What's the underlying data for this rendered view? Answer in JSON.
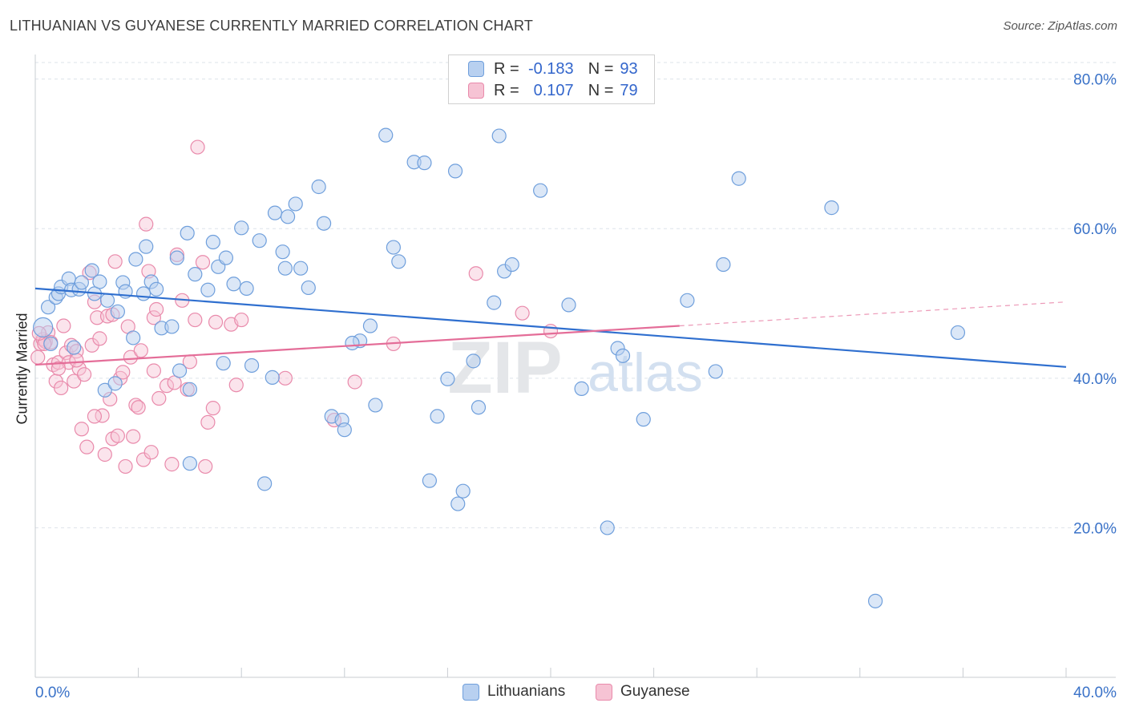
{
  "header": {
    "title": "LITHUANIAN VS GUYANESE CURRENTLY MARRIED CORRELATION CHART",
    "source": "Source: ZipAtlas.com"
  },
  "legend": {
    "rows": [
      {
        "r_label": "R =",
        "r_value": "-0.183",
        "n_label": "N =",
        "n_value": "93"
      },
      {
        "r_label": "R =",
        "r_value": "0.107",
        "n_label": "N =",
        "n_value": "79"
      }
    ]
  },
  "watermark": {
    "zip": "ZIP",
    "atlas": "atlas"
  },
  "colors": {
    "blue_fill": "#b8d0f0",
    "blue_stroke": "#6f9fdc",
    "blue_line": "#2f6fcf",
    "pink_fill": "#f6c3d4",
    "pink_stroke": "#e98aab",
    "pink_line": "#e46d98",
    "tick_label": "#3a72c8",
    "grid": "#dde3ea"
  },
  "chart_data": {
    "type": "scatter",
    "title": "LITHUANIAN VS GUYANESE CURRENTLY MARRIED CORRELATION CHART",
    "xlabel": "",
    "ylabel": "Currently Married",
    "xlim": [
      0,
      40
    ],
    "ylim": [
      0,
      82
    ],
    "x_tick_labels": [
      {
        "value": 0,
        "label": "0.0%"
      },
      {
        "value": 40,
        "label": "40.0%"
      }
    ],
    "y_tick_labels": [
      {
        "value": 20,
        "label": "20.0%"
      },
      {
        "value": 40,
        "label": "40.0%"
      },
      {
        "value": 60,
        "label": "60.0%"
      },
      {
        "value": 80,
        "label": "80.0%"
      }
    ],
    "grid": "horizontal dashed",
    "legend_position": "bottom",
    "series": [
      {
        "name": "Lithuanians",
        "color": "#6f9fdc",
        "r": -0.183,
        "n": 93,
        "trend": {
          "x0": 0,
          "y0": 52.0,
          "x1": 40,
          "y1": 41.5
        },
        "points": [
          [
            0.3,
            46.8
          ],
          [
            0.5,
            49.5
          ],
          [
            0.8,
            50.8
          ],
          [
            0.9,
            51.3
          ],
          [
            1.0,
            52.2
          ],
          [
            1.3,
            53.3
          ],
          [
            1.4,
            51.8
          ],
          [
            1.7,
            51.9
          ],
          [
            1.8,
            52.8
          ],
          [
            2.2,
            54.4
          ],
          [
            2.3,
            51.3
          ],
          [
            2.5,
            52.9
          ],
          [
            2.8,
            50.4
          ],
          [
            3.2,
            48.9
          ],
          [
            3.4,
            52.8
          ],
          [
            3.5,
            51.6
          ],
          [
            3.8,
            45.4
          ],
          [
            3.9,
            55.9
          ],
          [
            4.2,
            51.3
          ],
          [
            4.3,
            57.6
          ],
          [
            4.5,
            52.9
          ],
          [
            4.7,
            51.9
          ],
          [
            4.9,
            46.7
          ],
          [
            5.3,
            46.9
          ],
          [
            5.5,
            56.1
          ],
          [
            5.9,
            59.4
          ],
          [
            6.2,
            53.9
          ],
          [
            6.0,
            38.5
          ],
          [
            6.0,
            28.6
          ],
          [
            6.7,
            51.8
          ],
          [
            6.9,
            58.2
          ],
          [
            7.1,
            54.9
          ],
          [
            7.4,
            56.1
          ],
          [
            7.7,
            52.6
          ],
          [
            8.0,
            60.1
          ],
          [
            8.2,
            52.0
          ],
          [
            8.4,
            41.7
          ],
          [
            8.7,
            58.4
          ],
          [
            8.9,
            25.9
          ],
          [
            9.2,
            40.1
          ],
          [
            9.3,
            62.1
          ],
          [
            9.6,
            56.9
          ],
          [
            9.7,
            54.7
          ],
          [
            9.8,
            61.6
          ],
          [
            10.1,
            63.3
          ],
          [
            10.3,
            54.7
          ],
          [
            10.6,
            52.1
          ],
          [
            11.0,
            65.6
          ],
          [
            11.2,
            60.7
          ],
          [
            11.5,
            34.9
          ],
          [
            11.9,
            34.4
          ],
          [
            12.0,
            33.1
          ],
          [
            12.6,
            45.0
          ],
          [
            13.0,
            47.0
          ],
          [
            13.2,
            36.4
          ],
          [
            13.6,
            72.5
          ],
          [
            13.9,
            57.5
          ],
          [
            14.1,
            55.6
          ],
          [
            14.7,
            68.9
          ],
          [
            15.1,
            68.8
          ],
          [
            15.3,
            26.3
          ],
          [
            15.6,
            34.9
          ],
          [
            16.0,
            39.9
          ],
          [
            16.3,
            67.7
          ],
          [
            16.4,
            23.2
          ],
          [
            16.6,
            24.9
          ],
          [
            17.2,
            36.1
          ],
          [
            17.8,
            50.1
          ],
          [
            18.0,
            72.4
          ],
          [
            18.2,
            54.3
          ],
          [
            18.5,
            55.2
          ],
          [
            19.6,
            65.1
          ],
          [
            20.7,
            49.8
          ],
          [
            21.2,
            38.6
          ],
          [
            22.2,
            20.0
          ],
          [
            22.6,
            44.0
          ],
          [
            22.8,
            43.0
          ],
          [
            23.6,
            34.5
          ],
          [
            25.3,
            50.4
          ],
          [
            26.4,
            40.9
          ],
          [
            26.7,
            55.2
          ],
          [
            27.3,
            66.7
          ],
          [
            30.9,
            62.8
          ],
          [
            32.6,
            10.2
          ],
          [
            35.8,
            46.1
          ],
          [
            2.7,
            38.4
          ],
          [
            1.5,
            44.1
          ],
          [
            0.6,
            44.6
          ],
          [
            3.1,
            39.3
          ],
          [
            12.3,
            44.7
          ],
          [
            7.3,
            42.0
          ],
          [
            5.6,
            41.0
          ],
          [
            17.0,
            42.3
          ]
        ]
      },
      {
        "name": "Guyanese",
        "color": "#e98aab",
        "r": 0.107,
        "n": 79,
        "trend": {
          "x0": 0,
          "y0": 41.8,
          "x1": 25.0,
          "y1": 47.0,
          "dash_x1": 40,
          "dash_y1": 50.2
        },
        "points": [
          [
            0.1,
            42.8
          ],
          [
            0.2,
            44.6
          ],
          [
            0.3,
            45.2
          ],
          [
            0.4,
            44.9
          ],
          [
            0.5,
            46.1
          ],
          [
            0.6,
            44.8
          ],
          [
            0.7,
            41.8
          ],
          [
            0.8,
            39.6
          ],
          [
            0.9,
            42.1
          ],
          [
            1.0,
            38.7
          ],
          [
            1.1,
            47.0
          ],
          [
            1.2,
            43.4
          ],
          [
            1.3,
            42.1
          ],
          [
            1.4,
            44.4
          ],
          [
            1.5,
            39.6
          ],
          [
            1.6,
            43.6
          ],
          [
            1.7,
            41.3
          ],
          [
            1.8,
            33.2
          ],
          [
            1.9,
            40.5
          ],
          [
            2.0,
            30.8
          ],
          [
            2.1,
            54.1
          ],
          [
            2.2,
            44.4
          ],
          [
            2.3,
            50.2
          ],
          [
            2.4,
            48.1
          ],
          [
            2.5,
            45.3
          ],
          [
            2.6,
            35.0
          ],
          [
            2.7,
            29.8
          ],
          [
            2.8,
            48.3
          ],
          [
            2.9,
            37.2
          ],
          [
            3.0,
            31.9
          ],
          [
            3.1,
            55.6
          ],
          [
            3.2,
            32.3
          ],
          [
            3.3,
            40.0
          ],
          [
            3.4,
            40.8
          ],
          [
            3.5,
            28.2
          ],
          [
            3.6,
            46.9
          ],
          [
            3.7,
            42.8
          ],
          [
            3.8,
            32.2
          ],
          [
            3.9,
            36.4
          ],
          [
            4.0,
            36.1
          ],
          [
            4.1,
            43.7
          ],
          [
            4.2,
            29.1
          ],
          [
            4.3,
            60.6
          ],
          [
            4.4,
            54.3
          ],
          [
            4.5,
            30.1
          ],
          [
            4.6,
            48.1
          ],
          [
            4.7,
            49.2
          ],
          [
            4.8,
            37.3
          ],
          [
            5.1,
            39.0
          ],
          [
            5.3,
            28.5
          ],
          [
            5.4,
            39.4
          ],
          [
            5.5,
            56.5
          ],
          [
            5.7,
            50.4
          ],
          [
            5.9,
            38.5
          ],
          [
            6.0,
            42.2
          ],
          [
            6.2,
            47.8
          ],
          [
            6.3,
            70.9
          ],
          [
            6.5,
            55.5
          ],
          [
            6.6,
            28.2
          ],
          [
            6.7,
            34.1
          ],
          [
            6.9,
            36.0
          ],
          [
            7.0,
            47.5
          ],
          [
            7.6,
            47.2
          ],
          [
            7.8,
            39.1
          ],
          [
            8.0,
            47.8
          ],
          [
            9.7,
            40.0
          ],
          [
            11.6,
            34.4
          ],
          [
            12.4,
            39.5
          ],
          [
            13.9,
            44.6
          ],
          [
            17.1,
            54.0
          ],
          [
            18.9,
            48.7
          ],
          [
            20.0,
            46.3
          ],
          [
            0.35,
            44.6
          ],
          [
            0.9,
            41.3
          ],
          [
            2.3,
            34.9
          ],
          [
            1.6,
            42.4
          ],
          [
            4.6,
            41.0
          ],
          [
            0.15,
            46.0
          ],
          [
            3.0,
            48.5
          ]
        ]
      }
    ]
  },
  "bottom_legend": {
    "items": [
      "Lithuanians",
      "Guyanese"
    ]
  }
}
